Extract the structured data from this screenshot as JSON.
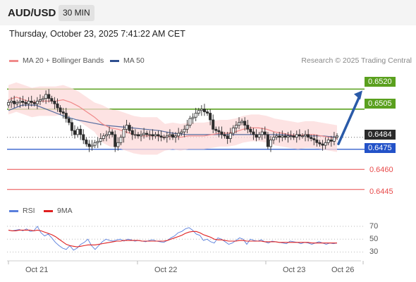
{
  "header": {
    "symbol": "AUD/USD",
    "timeframe": "30 MIN"
  },
  "datetime": "Thursday, October 23, 2025 7:41:22 AM CET",
  "legend": {
    "ma20": {
      "label": "MA 20 + Bollinger Bands",
      "color": "#f08a8a"
    },
    "ma50": {
      "label": "MA 50",
      "color": "#2e4f8f"
    }
  },
  "credit": "Research © 2025 Trading Central",
  "rsi_legend": {
    "rsi": {
      "label": "RSI",
      "color": "#5a7fdc"
    },
    "ma": {
      "label": "9MA",
      "color": "#e02020"
    }
  },
  "levels": {
    "r2": {
      "value": "0.6520",
      "color": "#5aa01e"
    },
    "r1": {
      "value": "0.6505",
      "color": "#5aa01e"
    },
    "current": {
      "value": "0.6484",
      "color": "#2a2a2a"
    },
    "s1": {
      "value": "0.6475",
      "color": "#2352c8"
    },
    "s2": {
      "value": "0.6460",
      "color": "#e84a4a"
    },
    "s3": {
      "value": "0.6445",
      "color": "#e84a4a"
    }
  },
  "chart_data": [
    {
      "type": "candlestick",
      "title": "AUD/USD",
      "x_labels": [
        "Oct 21",
        "Oct 22",
        "Oct 23",
        "Oct 26"
      ],
      "y_range": [
        0.6438,
        0.6536
      ],
      "price_levels": [
        0.652,
        0.6505,
        0.6484,
        0.6475,
        0.646,
        0.6445
      ],
      "close": [
        0.651,
        0.6511,
        0.6509,
        0.651,
        0.6511,
        0.651,
        0.6509,
        0.6511,
        0.651,
        0.6509,
        0.6511,
        0.6512,
        0.6513,
        0.6516,
        0.6513,
        0.6511,
        0.6509,
        0.6506,
        0.6503,
        0.6502,
        0.6498,
        0.6495,
        0.6489,
        0.6486,
        0.649,
        0.6486,
        0.6482,
        0.6479,
        0.6477,
        0.6478,
        0.648,
        0.6481,
        0.6483,
        0.6485,
        0.6486,
        0.6488,
        0.6486,
        0.6477,
        0.648,
        0.6484,
        0.649,
        0.6493,
        0.6489,
        0.6486,
        0.6486,
        0.6485,
        0.6486,
        0.6487,
        0.6486,
        0.6486,
        0.6485,
        0.6486,
        0.6485,
        0.6484,
        0.6484,
        0.6485,
        0.6486,
        0.6484,
        0.6485,
        0.6487,
        0.6488,
        0.649,
        0.6493,
        0.6498,
        0.6499,
        0.6502,
        0.6504,
        0.6505,
        0.6503,
        0.6502,
        0.6497,
        0.649,
        0.6489,
        0.6488,
        0.6486,
        0.6485,
        0.6483,
        0.6487,
        0.6491,
        0.6493,
        0.6495,
        0.6496,
        0.6493,
        0.649,
        0.6488,
        0.6486,
        0.6484,
        0.6486,
        0.6488,
        0.6486,
        0.6477,
        0.6482,
        0.6484,
        0.6485,
        0.6484,
        0.6485,
        0.6484,
        0.6485,
        0.6485,
        0.6484,
        0.6486,
        0.6485,
        0.6485,
        0.6486,
        0.6484,
        0.6483,
        0.6482,
        0.648,
        0.6479,
        0.6478,
        0.648,
        0.6482,
        0.6481,
        0.6484,
        0.6485
      ],
      "ma20": [
        0.6512,
        0.6514,
        0.6512,
        0.651,
        0.6511,
        0.6511,
        0.6511,
        0.6512,
        0.651,
        0.6507,
        0.6503,
        0.6499,
        0.6494,
        0.6491,
        0.649,
        0.6488,
        0.6486,
        0.6485,
        0.6485,
        0.6485,
        0.6484,
        0.6485,
        0.6484,
        0.6485,
        0.6485,
        0.6485,
        0.6486,
        0.6487,
        0.6487,
        0.6488,
        0.649,
        0.6491,
        0.6491,
        0.649,
        0.6488,
        0.6487,
        0.6486,
        0.6485,
        0.6486,
        0.6486,
        0.6485,
        0.6484,
        0.6483
      ],
      "ma50": [
        0.6504,
        0.6508,
        0.6508,
        0.6504,
        0.65,
        0.6497,
        0.6495,
        0.6493,
        0.6492,
        0.6491,
        0.649,
        0.6489,
        0.6487,
        0.6486,
        0.6486,
        0.6486,
        0.6486,
        0.6486,
        0.6486,
        0.6486,
        0.6486,
        0.6485,
        0.6485,
        0.6485,
        0.6484
      ]
    },
    {
      "type": "line",
      "title": "RSI",
      "yticks": [
        70,
        50,
        30
      ],
      "series": [
        {
          "name": "RSI",
          "values": [
            64,
            63,
            64,
            65,
            63,
            66,
            62,
            63,
            70,
            60,
            55,
            58,
            52,
            45,
            40,
            36,
            34,
            40,
            33,
            36,
            42,
            45,
            50,
            40,
            34,
            40,
            46,
            50,
            48,
            47,
            49,
            50,
            47,
            50,
            49,
            47,
            48,
            47,
            46,
            48,
            49,
            47,
            46,
            45,
            48,
            52,
            55,
            60,
            62,
            66,
            68,
            64,
            58,
            56,
            48,
            50,
            46,
            44,
            52,
            50,
            46,
            42,
            44,
            48,
            52,
            50,
            42,
            50,
            48,
            47,
            49,
            46,
            44,
            47,
            46,
            45,
            44,
            43,
            47,
            46,
            45,
            43,
            45,
            44,
            42,
            44,
            46,
            44,
            42,
            44,
            43,
            44
          ]
        },
        {
          "name": "9MA",
          "values": [
            64,
            63,
            63,
            64,
            64,
            64,
            64,
            63,
            64,
            63,
            61,
            59,
            57,
            54,
            50,
            46,
            42,
            40,
            39,
            38,
            39,
            40,
            41,
            41,
            41,
            42,
            43,
            44,
            45,
            46,
            47,
            47,
            48,
            48,
            48,
            48,
            48,
            47,
            47,
            47,
            47,
            47,
            47,
            47,
            48,
            50,
            52,
            54,
            56,
            59,
            61,
            62,
            62,
            60,
            57,
            55,
            53,
            50,
            49,
            49,
            48,
            47,
            47,
            47,
            48,
            48,
            47,
            47,
            47,
            47,
            47,
            46,
            46,
            46,
            46,
            45,
            45,
            45,
            45,
            45,
            45,
            45,
            45,
            45,
            44,
            44,
            44,
            44,
            44,
            44,
            44,
            44
          ]
        }
      ]
    }
  ]
}
